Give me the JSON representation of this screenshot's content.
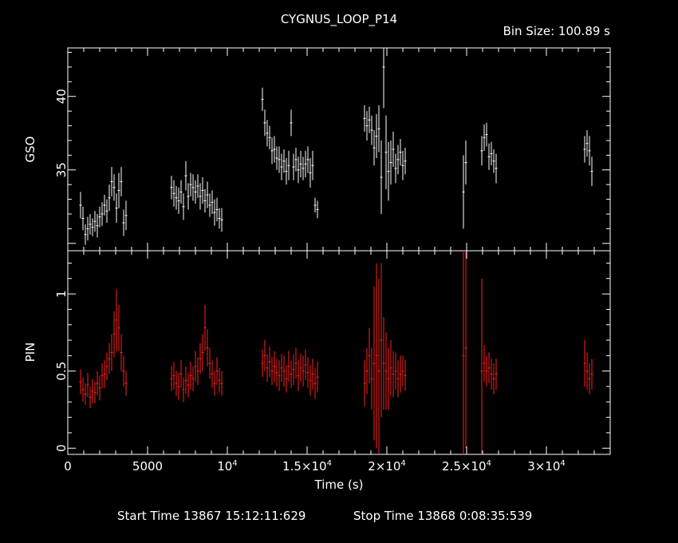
{
  "header": {
    "title": "CYGNUS_LOOP_P14",
    "bin_size": "Bin Size: 100.89 s"
  },
  "footer": {
    "start": "Start Time 13867 15:12:11:629",
    "stop": "Stop Time 13868  0:08:35:539"
  },
  "colors": {
    "gso": "#ffffff",
    "pin": "#ff2020",
    "frame": "#ffffff",
    "background": "#000000"
  },
  "chart_data": [
    {
      "type": "scatter",
      "panel": "upper",
      "ylabel": "GSO",
      "xlim": [
        0,
        34000
      ],
      "ylim": [
        29.5,
        43.3
      ],
      "y_ticks": [
        {
          "value": 35,
          "label": "35"
        },
        {
          "value": 40,
          "label": "40"
        }
      ],
      "series": [
        {
          "points": [
            [
              800,
              32.6,
              0.9
            ],
            [
              950,
              31.7,
              0.8
            ],
            [
              1100,
              30.6,
              0.7
            ],
            [
              1250,
              31.0,
              0.8
            ],
            [
              1400,
              31.3,
              0.7
            ],
            [
              1550,
              31.1,
              0.6
            ],
            [
              1700,
              31.5,
              0.7
            ],
            [
              1850,
              31.2,
              0.8
            ],
            [
              2000,
              31.8,
              0.7
            ],
            [
              2150,
              32.0,
              0.8
            ],
            [
              2300,
              32.6,
              0.7
            ],
            [
              2450,
              32.2,
              0.8
            ],
            [
              2600,
              33.1,
              0.9
            ],
            [
              2750,
              34.2,
              1.0
            ],
            [
              2900,
              33.8,
              0.9
            ],
            [
              3050,
              32.4,
              1.0
            ],
            [
              3200,
              33.6,
              1.2
            ],
            [
              3350,
              34.2,
              1.0
            ],
            [
              3500,
              31.4,
              0.9
            ],
            [
              3650,
              31.9,
              1.0
            ],
            [
              6500,
              33.8,
              0.8
            ],
            [
              6650,
              33.4,
              0.9
            ],
            [
              6800,
              33.1,
              0.8
            ],
            [
              6950,
              32.9,
              0.9
            ],
            [
              7100,
              33.5,
              0.8
            ],
            [
              7250,
              32.5,
              0.9
            ],
            [
              7400,
              34.6,
              1.0
            ],
            [
              7550,
              33.2,
              0.9
            ],
            [
              7700,
              34.0,
              0.8
            ],
            [
              7850,
              33.8,
              0.9
            ],
            [
              8000,
              33.5,
              0.8
            ],
            [
              8150,
              33.9,
              0.8
            ],
            [
              8300,
              33.2,
              0.9
            ],
            [
              8450,
              33.6,
              0.9
            ],
            [
              8600,
              32.9,
              0.8
            ],
            [
              8750,
              33.3,
              0.9
            ],
            [
              8900,
              32.6,
              0.8
            ],
            [
              9050,
              32.8,
              0.8
            ],
            [
              9200,
              32.1,
              0.9
            ],
            [
              9350,
              32.3,
              0.8
            ],
            [
              9500,
              31.7,
              0.7
            ],
            [
              9650,
              31.6,
              0.8
            ],
            [
              12200,
              39.8,
              0.8
            ],
            [
              12350,
              38.2,
              0.9
            ],
            [
              12500,
              37.5,
              0.9
            ],
            [
              12650,
              37.2,
              0.8
            ],
            [
              12800,
              36.3,
              0.9
            ],
            [
              12950,
              36.4,
              0.9
            ],
            [
              13100,
              35.8,
              0.8
            ],
            [
              13250,
              35.7,
              0.9
            ],
            [
              13400,
              35.2,
              0.9
            ],
            [
              13550,
              35.6,
              0.8
            ],
            [
              13700,
              34.9,
              0.9
            ],
            [
              13850,
              35.3,
              1.0
            ],
            [
              14000,
              38.2,
              0.9
            ],
            [
              14150,
              35.2,
              0.9
            ],
            [
              14300,
              35.7,
              0.8
            ],
            [
              14450,
              35.0,
              0.9
            ],
            [
              14600,
              35.4,
              0.9
            ],
            [
              14750,
              35.1,
              0.8
            ],
            [
              14900,
              35.4,
              0.9
            ],
            [
              15050,
              35.7,
              0.9
            ],
            [
              15200,
              34.8,
              1.0
            ],
            [
              15350,
              35.3,
              1.0
            ],
            [
              15500,
              32.6,
              0.5
            ],
            [
              15650,
              32.3,
              0.6
            ],
            [
              18600,
              38.5,
              0.9
            ],
            [
              18750,
              38.0,
              1.0
            ],
            [
              18900,
              38.4,
              0.9
            ],
            [
              19050,
              37.7,
              1.0
            ],
            [
              19200,
              36.5,
              1.2
            ],
            [
              19350,
              37.3,
              1.5
            ],
            [
              19500,
              37.8,
              1.6
            ],
            [
              19650,
              34.5,
              2.5
            ],
            [
              19800,
              42.0,
              2.8
            ],
            [
              19950,
              36.2,
              2.5
            ],
            [
              20100,
              34.9,
              2.0
            ],
            [
              20250,
              35.5,
              1.5
            ],
            [
              20400,
              36.4,
              1.2
            ],
            [
              20550,
              35.1,
              1.0
            ],
            [
              20700,
              35.7,
              1.0
            ],
            [
              20850,
              36.2,
              0.9
            ],
            [
              21000,
              35.3,
              1.0
            ],
            [
              21150,
              35.6,
              0.9
            ],
            [
              24800,
              33.5,
              2.5
            ],
            [
              24950,
              35.5,
              1.5
            ],
            [
              25950,
              36.3,
              1.0
            ],
            [
              26100,
              37.2,
              0.9
            ],
            [
              26250,
              37.4,
              0.8
            ],
            [
              26400,
              35.9,
              0.9
            ],
            [
              26550,
              36.1,
              0.8
            ],
            [
              26700,
              35.6,
              0.8
            ],
            [
              26850,
              35.1,
              1.0
            ],
            [
              32400,
              36.4,
              0.9
            ],
            [
              32550,
              36.8,
              0.9
            ],
            [
              32700,
              36.3,
              1.0
            ],
            [
              32850,
              34.9,
              1.0
            ]
          ]
        }
      ]
    },
    {
      "type": "scatter",
      "panel": "lower",
      "ylabel": "PIN",
      "xlabel": "Time (s)",
      "xlim": [
        0,
        34000
      ],
      "ylim": [
        -0.04,
        1.28
      ],
      "x_ticks": [
        {
          "value": 0,
          "label": "0",
          "sup": ""
        },
        {
          "value": 5000,
          "label": "5000",
          "sup": ""
        },
        {
          "value": 10000,
          "label": "10",
          "sup": "4"
        },
        {
          "value": 15000,
          "label": "1.5×10",
          "sup": "4"
        },
        {
          "value": 20000,
          "label": "2×10",
          "sup": "4"
        },
        {
          "value": 25000,
          "label": "2.5×10",
          "sup": "4"
        },
        {
          "value": 30000,
          "label": "3×10",
          "sup": "4"
        }
      ],
      "y_ticks": [
        {
          "value": 0,
          "label": "0"
        },
        {
          "value": 0.5,
          "label": "0.5"
        },
        {
          "value": 1,
          "label": "1"
        }
      ],
      "series": [
        {
          "points": [
            [
              800,
              0.43,
              0.08
            ],
            [
              950,
              0.38,
              0.08
            ],
            [
              1100,
              0.35,
              0.07
            ],
            [
              1250,
              0.41,
              0.08
            ],
            [
              1400,
              0.33,
              0.07
            ],
            [
              1550,
              0.37,
              0.08
            ],
            [
              1700,
              0.36,
              0.07
            ],
            [
              1850,
              0.42,
              0.08
            ],
            [
              2000,
              0.39,
              0.08
            ],
            [
              2150,
              0.47,
              0.08
            ],
            [
              2300,
              0.48,
              0.09
            ],
            [
              2450,
              0.53,
              0.09
            ],
            [
              2600,
              0.58,
              0.1
            ],
            [
              2750,
              0.62,
              0.12
            ],
            [
              2900,
              0.74,
              0.15
            ],
            [
              3050,
              0.83,
              0.2
            ],
            [
              3200,
              0.78,
              0.15
            ],
            [
              3350,
              0.62,
              0.12
            ],
            [
              3500,
              0.5,
              0.1
            ],
            [
              3650,
              0.42,
              0.08
            ],
            [
              6500,
              0.45,
              0.08
            ],
            [
              6650,
              0.47,
              0.09
            ],
            [
              6800,
              0.42,
              0.08
            ],
            [
              6950,
              0.4,
              0.09
            ],
            [
              7100,
              0.48,
              0.09
            ],
            [
              7250,
              0.38,
              0.08
            ],
            [
              7400,
              0.44,
              0.09
            ],
            [
              7550,
              0.41,
              0.08
            ],
            [
              7700,
              0.47,
              0.09
            ],
            [
              7850,
              0.45,
              0.08
            ],
            [
              8000,
              0.53,
              0.1
            ],
            [
              8150,
              0.5,
              0.09
            ],
            [
              8300,
              0.58,
              0.1
            ],
            [
              8450,
              0.62,
              0.12
            ],
            [
              8600,
              0.78,
              0.15
            ],
            [
              8750,
              0.65,
              0.12
            ],
            [
              8900,
              0.55,
              0.1
            ],
            [
              9050,
              0.48,
              0.09
            ],
            [
              9200,
              0.42,
              0.08
            ],
            [
              9350,
              0.5,
              0.09
            ],
            [
              9500,
              0.44,
              0.08
            ],
            [
              9650,
              0.42,
              0.08
            ],
            [
              12200,
              0.55,
              0.09
            ],
            [
              12350,
              0.6,
              0.1
            ],
            [
              12500,
              0.52,
              0.09
            ],
            [
              12650,
              0.56,
              0.1
            ],
            [
              12800,
              0.5,
              0.09
            ],
            [
              12950,
              0.53,
              0.1
            ],
            [
              13100,
              0.49,
              0.09
            ],
            [
              13250,
              0.47,
              0.1
            ],
            [
              13400,
              0.52,
              0.09
            ],
            [
              13550,
              0.5,
              0.1
            ],
            [
              13700,
              0.45,
              0.09
            ],
            [
              13850,
              0.53,
              0.1
            ],
            [
              14000,
              0.48,
              0.09
            ],
            [
              14150,
              0.51,
              0.1
            ],
            [
              14300,
              0.55,
              0.1
            ],
            [
              14450,
              0.47,
              0.1
            ],
            [
              14600,
              0.52,
              0.09
            ],
            [
              14750,
              0.5,
              0.1
            ],
            [
              14900,
              0.54,
              0.1
            ],
            [
              15050,
              0.49,
              0.1
            ],
            [
              15200,
              0.44,
              0.1
            ],
            [
              15350,
              0.48,
              0.1
            ],
            [
              15500,
              0.42,
              0.1
            ],
            [
              15650,
              0.46,
              0.1
            ],
            [
              18600,
              0.42,
              0.15
            ],
            [
              18750,
              0.5,
              0.15
            ],
            [
              18900,
              0.6,
              0.18
            ],
            [
              19050,
              0.45,
              0.2
            ],
            [
              19200,
              0.55,
              0.5
            ],
            [
              19350,
              0.6,
              0.6
            ],
            [
              19500,
              0.5,
              0.6
            ],
            [
              19650,
              0.7,
              0.5
            ],
            [
              19800,
              0.55,
              0.3
            ],
            [
              19950,
              0.5,
              0.25
            ],
            [
              20100,
              0.45,
              0.2
            ],
            [
              20250,
              0.52,
              0.18
            ],
            [
              20400,
              0.48,
              0.15
            ],
            [
              20550,
              0.5,
              0.12
            ],
            [
              20700,
              0.45,
              0.12
            ],
            [
              20850,
              0.48,
              0.12
            ],
            [
              21000,
              0.5,
              0.1
            ],
            [
              21150,
              0.47,
              0.1
            ],
            [
              24800,
              0.6,
              0.7
            ],
            [
              24950,
              0.65,
              0.65
            ],
            [
              25950,
              0.5,
              0.6
            ],
            [
              26100,
              0.55,
              0.12
            ],
            [
              26250,
              0.5,
              0.1
            ],
            [
              26400,
              0.52,
              0.1
            ],
            [
              26550,
              0.48,
              0.1
            ],
            [
              26700,
              0.45,
              0.1
            ],
            [
              26850,
              0.48,
              0.1
            ],
            [
              32400,
              0.55,
              0.15
            ],
            [
              32550,
              0.5,
              0.12
            ],
            [
              32700,
              0.45,
              0.1
            ],
            [
              32850,
              0.48,
              0.1
            ]
          ]
        }
      ]
    }
  ]
}
